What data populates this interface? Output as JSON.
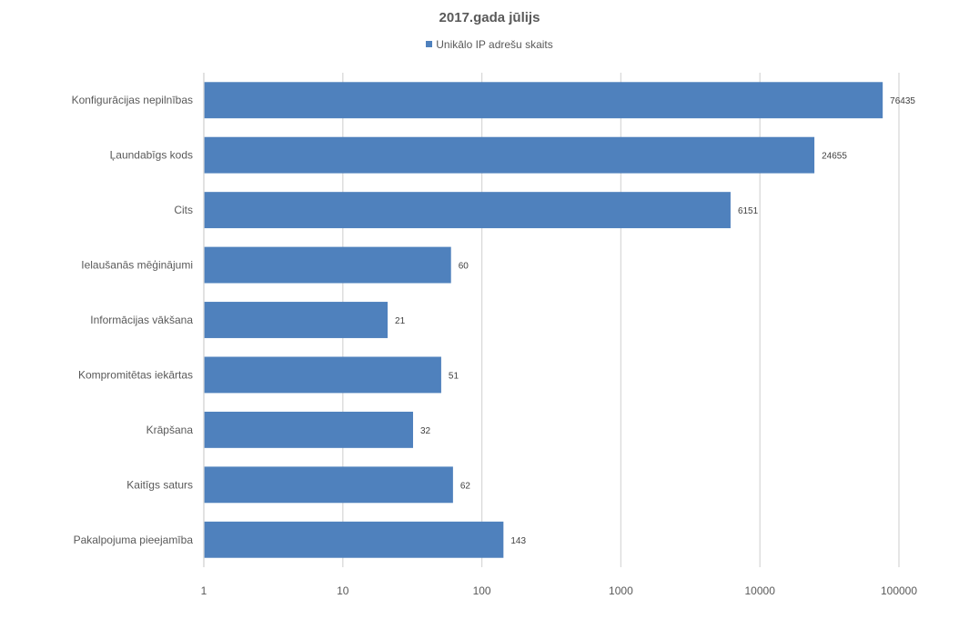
{
  "chart_data": {
    "type": "bar",
    "orientation": "horizontal",
    "title": "2017.gada jūlijs",
    "x_scale": "log",
    "xlim": [
      1,
      100000
    ],
    "x_ticks": [
      "1",
      "10",
      "100",
      "1000",
      "10000",
      "100000"
    ],
    "grid": "vertical",
    "legend_position": "top",
    "series": [
      {
        "name": "Unikālo IP adrešu skaits",
        "color": "#4f81bd",
        "values": [
          76435,
          24655,
          6151,
          60,
          21,
          51,
          32,
          62,
          143
        ]
      }
    ],
    "categories": [
      "Konfigurācijas nepilnības",
      "Ļaundabīgs kods",
      "Cits",
      "Ielaušanās mēģinājumi",
      "Informācijas vākšana",
      "Kompromitētas iekārtas",
      "Krāpšana",
      "Kaitīgs saturs",
      "Pakalpojuma pieejamība"
    ],
    "data_labels": [
      "76435",
      "24655",
      "6151",
      "60",
      "21",
      "51",
      "32",
      "62",
      "143"
    ]
  }
}
